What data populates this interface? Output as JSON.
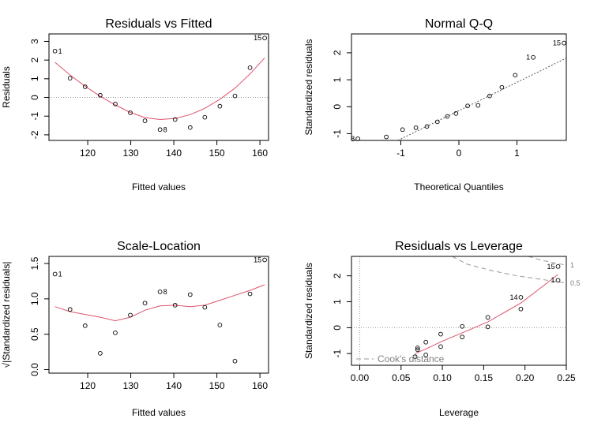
{
  "colors": {
    "smooth": "#DF536B",
    "reference": "#999999",
    "cook": "#999999",
    "cook_text": "#808080"
  },
  "chart_data": [
    {
      "id": "resid-fitted",
      "type": "scatter",
      "title": "Residuals vs Fitted",
      "xlabel": "Fitted values",
      "ylabel": "Residuals",
      "xlim": [
        111,
        162
      ],
      "ylim": [
        -2.3,
        3.4
      ],
      "xticks": [
        "120",
        "130",
        "140",
        "150",
        "160"
      ],
      "yticks": [
        "-2",
        "-1",
        "0",
        "1",
        "2",
        "3"
      ],
      "points": [
        {
          "x": 112.4,
          "y": 2.48,
          "label": "1"
        },
        {
          "x": 115.9,
          "y": 1.03
        },
        {
          "x": 119.4,
          "y": 0.57
        },
        {
          "x": 122.9,
          "y": 0.12
        },
        {
          "x": 126.4,
          "y": -0.35
        },
        {
          "x": 129.9,
          "y": -0.82
        },
        {
          "x": 133.3,
          "y": -1.25
        },
        {
          "x": 136.8,
          "y": -1.72,
          "label": "8"
        },
        {
          "x": 140.3,
          "y": -1.18
        },
        {
          "x": 143.8,
          "y": -1.61
        },
        {
          "x": 147.2,
          "y": -1.06
        },
        {
          "x": 150.7,
          "y": -0.47
        },
        {
          "x": 154.2,
          "y": 0.08
        },
        {
          "x": 157.7,
          "y": 1.59
        },
        {
          "x": 161.1,
          "y": 3.18,
          "label": "15"
        }
      ],
      "smooth": [
        [
          112.4,
          1.88
        ],
        [
          115.9,
          1.2
        ],
        [
          119.4,
          0.6
        ],
        [
          122.9,
          0.06
        ],
        [
          126.4,
          -0.4
        ],
        [
          129.9,
          -0.8
        ],
        [
          133.3,
          -1.08
        ],
        [
          136.8,
          -1.18
        ],
        [
          140.3,
          -1.12
        ],
        [
          143.8,
          -0.92
        ],
        [
          147.2,
          -0.58
        ],
        [
          150.7,
          -0.1
        ],
        [
          154.2,
          0.5
        ],
        [
          157.7,
          1.26
        ],
        [
          161.1,
          2.12
        ]
      ],
      "hline": 0
    },
    {
      "id": "normal-qq",
      "type": "scatter",
      "title": "Normal Q-Q",
      "xlabel": "Theoretical Quantiles",
      "ylabel": "Standardized residuals",
      "xlim": [
        -1.85,
        1.85
      ],
      "ylim": [
        -1.25,
        2.7
      ],
      "xticks": [
        "-1",
        "0",
        "1"
      ],
      "yticks": [
        "-1",
        "0",
        "1",
        "2"
      ],
      "points": [
        {
          "x": -1.74,
          "y": -1.19,
          "label": "8"
        },
        {
          "x": -1.25,
          "y": -1.12
        },
        {
          "x": -0.97,
          "y": -0.85
        },
        {
          "x": -0.74,
          "y": -0.78
        },
        {
          "x": -0.55,
          "y": -0.73
        },
        {
          "x": -0.37,
          "y": -0.56
        },
        {
          "x": -0.2,
          "y": -0.36
        },
        {
          "x": -0.05,
          "y": -0.25
        },
        {
          "x": 0.15,
          "y": 0.03
        },
        {
          "x": 0.33,
          "y": 0.05
        },
        {
          "x": 0.53,
          "y": 0.4
        },
        {
          "x": 0.74,
          "y": 0.72
        },
        {
          "x": 0.97,
          "y": 1.17
        },
        {
          "x": 1.28,
          "y": 1.83,
          "label": "1"
        },
        {
          "x": 1.81,
          "y": 2.36,
          "label": "15"
        }
      ],
      "refline": [
        [
          -1.05,
          -1.25
        ],
        [
          1.85,
          1.8
        ]
      ]
    },
    {
      "id": "scale-location",
      "type": "scatter",
      "title": "Scale-Location",
      "xlabel": "Fitted values",
      "ylabel": "√|Standardized residuals|",
      "xlim": [
        111,
        162
      ],
      "ylim": [
        -0.05,
        1.6
      ],
      "xticks": [
        "120",
        "130",
        "140",
        "150",
        "160"
      ],
      "yticks": [
        "0.0",
        "0.5",
        "1.0",
        "1.5"
      ],
      "points": [
        {
          "x": 112.4,
          "y": 1.35,
          "label": "1"
        },
        {
          "x": 115.9,
          "y": 0.85
        },
        {
          "x": 119.4,
          "y": 0.62
        },
        {
          "x": 122.9,
          "y": 0.23
        },
        {
          "x": 126.4,
          "y": 0.52
        },
        {
          "x": 129.9,
          "y": 0.77
        },
        {
          "x": 133.3,
          "y": 0.94
        },
        {
          "x": 136.8,
          "y": 1.1,
          "label": "8"
        },
        {
          "x": 140.3,
          "y": 0.91
        },
        {
          "x": 143.8,
          "y": 1.06
        },
        {
          "x": 147.2,
          "y": 0.88
        },
        {
          "x": 150.7,
          "y": 0.63
        },
        {
          "x": 154.2,
          "y": 0.12
        },
        {
          "x": 157.7,
          "y": 1.07
        },
        {
          "x": 161.1,
          "y": 1.55,
          "label": "15"
        }
      ],
      "smooth": [
        [
          112.4,
          0.89
        ],
        [
          115.9,
          0.82
        ],
        [
          119.4,
          0.78
        ],
        [
          122.9,
          0.74
        ],
        [
          126.4,
          0.69
        ],
        [
          129.9,
          0.74
        ],
        [
          133.3,
          0.84
        ],
        [
          136.8,
          0.9
        ],
        [
          140.3,
          0.91
        ],
        [
          143.8,
          0.89
        ],
        [
          147.2,
          0.91
        ],
        [
          150.7,
          0.98
        ],
        [
          154.2,
          1.05
        ],
        [
          157.7,
          1.12
        ],
        [
          161.1,
          1.2
        ]
      ]
    },
    {
      "id": "resid-leverage",
      "type": "scatter",
      "title": "Residuals vs Leverage",
      "xlabel": "Leverage",
      "ylabel": "Standardized residuals",
      "xlim": [
        -0.01,
        0.25
      ],
      "ylim": [
        -1.45,
        2.75
      ],
      "xticks": [
        "0.00",
        "0.05",
        "0.10",
        "0.15",
        "0.20",
        "0.25"
      ],
      "yticks": [
        "-1",
        "0",
        "1",
        "2"
      ],
      "legend": "Cook's distance",
      "cook_levels": [
        "1",
        "0.5"
      ],
      "points": [
        {
          "x": 0.067,
          "y": -1.12
        },
        {
          "x": 0.07,
          "y": -0.85
        },
        {
          "x": 0.07,
          "y": -0.78
        },
        {
          "x": 0.08,
          "y": -1.05
        },
        {
          "x": 0.08,
          "y": -0.56
        },
        {
          "x": 0.098,
          "y": -0.73
        },
        {
          "x": 0.098,
          "y": -0.25
        },
        {
          "x": 0.124,
          "y": -0.36
        },
        {
          "x": 0.124,
          "y": 0.05
        },
        {
          "x": 0.155,
          "y": 0.03
        },
        {
          "x": 0.155,
          "y": 0.4
        },
        {
          "x": 0.195,
          "y": 0.72
        },
        {
          "x": 0.195,
          "y": 1.17,
          "label": "14"
        },
        {
          "x": 0.24,
          "y": 1.83,
          "label": "1"
        },
        {
          "x": 0.24,
          "y": 2.36,
          "label": "15"
        }
      ],
      "smooth": [
        [
          0.067,
          -1.0
        ],
        [
          0.08,
          -0.82
        ],
        [
          0.1,
          -0.52
        ],
        [
          0.124,
          -0.2
        ],
        [
          0.155,
          0.22
        ],
        [
          0.195,
          0.95
        ],
        [
          0.24,
          2.05
        ]
      ],
      "hline": 0,
      "vline": 0,
      "cook_curves": [
        [
          [
            0.204,
            2.75
          ],
          [
            0.22,
            2.6
          ],
          [
            0.24,
            2.47
          ],
          [
            0.25,
            2.41
          ]
        ],
        [
          [
            0.112,
            2.75
          ],
          [
            0.13,
            2.45
          ],
          [
            0.16,
            2.2
          ],
          [
            0.19,
            2.0
          ],
          [
            0.22,
            1.86
          ],
          [
            0.25,
            1.72
          ]
        ]
      ]
    }
  ]
}
